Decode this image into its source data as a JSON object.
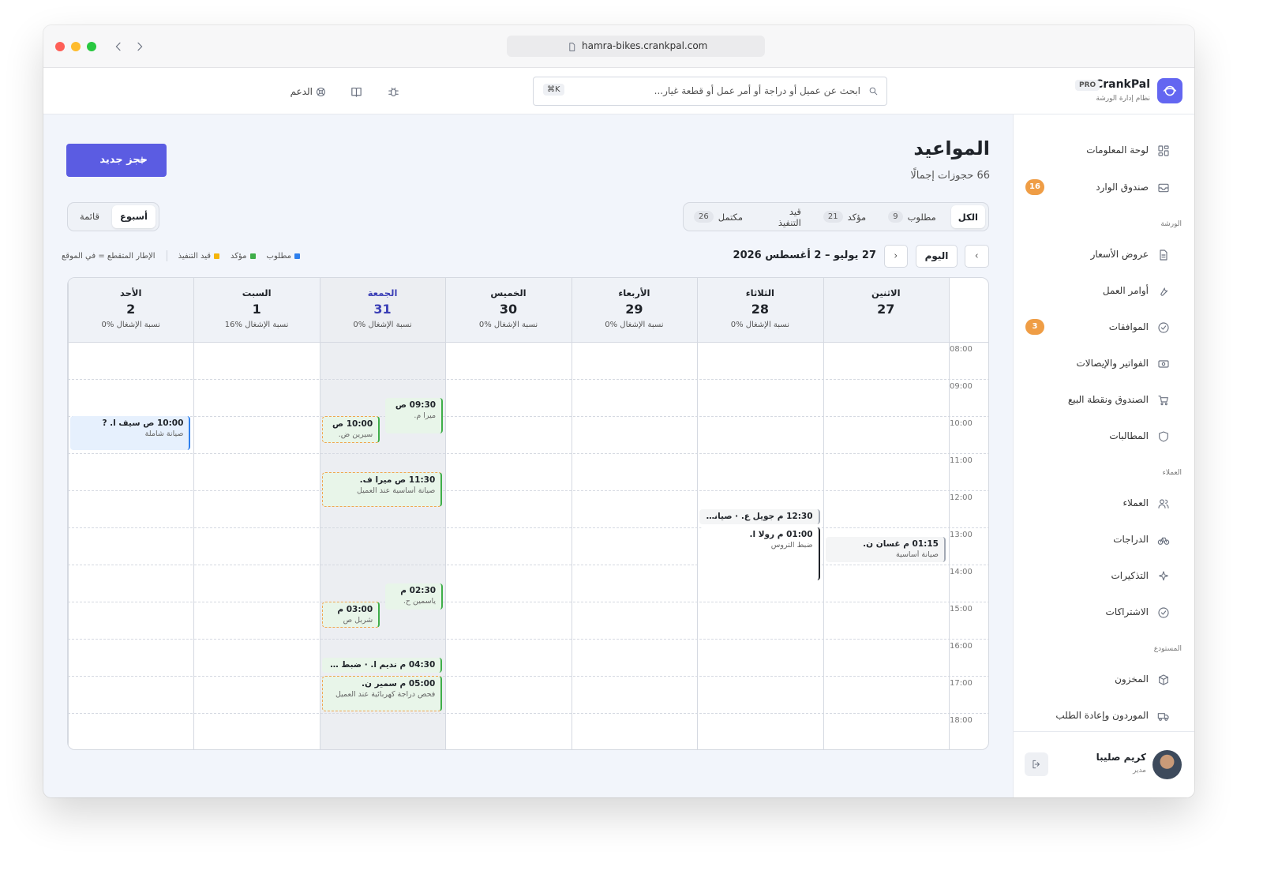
{
  "browser": {
    "url": "hamra-bikes.crankpal.com"
  },
  "brand": {
    "name": "CrankPal",
    "badge": "PRO",
    "tagline": "نظام إدارة الورشة"
  },
  "topbar": {
    "search_placeholder": "ابحث عن عميل أو دراجة أو أمر عمل أو قطعة غيار...",
    "shortcut": "⌘K",
    "support": "الدعم"
  },
  "sidebar": {
    "main": [
      {
        "label": "لوحة المعلومات"
      },
      {
        "label": "صندوق الوارد",
        "badge": 16
      }
    ],
    "groups": [
      {
        "title": "الورشة",
        "items": [
          {
            "label": "عروض الأسعار"
          },
          {
            "label": "أوامر العمل"
          },
          {
            "label": "الموافقات",
            "badge": 3
          },
          {
            "label": "الفواتير والإيصالات"
          },
          {
            "label": "الصندوق ونقطة البيع"
          },
          {
            "label": "المطالبات"
          }
        ]
      },
      {
        "title": "العملاء",
        "items": [
          {
            "label": "العملاء"
          },
          {
            "label": "الدراجات"
          },
          {
            "label": "التذكيرات"
          },
          {
            "label": "الاشتراكات"
          }
        ]
      },
      {
        "title": "المستودع",
        "items": [
          {
            "label": "المخزون"
          },
          {
            "label": "الموردون وإعادة الطلب"
          }
        ]
      }
    ],
    "user": {
      "name": "كريم صليبا",
      "role": "مدير"
    }
  },
  "page": {
    "title": "المواعيد",
    "subtitle": "66 حجوزات إجمالًا",
    "new_button": "حجز جديد"
  },
  "filters": {
    "active": 0,
    "tabs": [
      {
        "label": "الكل"
      },
      {
        "label": "مطلوب",
        "count": 9
      },
      {
        "label": "مؤكد",
        "count": 21
      },
      {
        "label": "قيد التنفيذ"
      },
      {
        "label": "مكتمل",
        "count": 26
      }
    ]
  },
  "views": {
    "active": 0,
    "options": [
      "أسبوع",
      "قائمة"
    ]
  },
  "nav": {
    "today": "اليوم",
    "range": "27 يوليو – 2 أغسطس 2026"
  },
  "legend": {
    "items": [
      {
        "label": "مطلوب",
        "color": "#2f80ed"
      },
      {
        "label": "مؤكد",
        "color": "#3fae49"
      },
      {
        "label": "قيد التنفيذ",
        "color": "#f5b50a"
      }
    ],
    "note": "الإطار المتقطع = في الموقع"
  },
  "calendar": {
    "today": 4,
    "hours": [
      "08:00",
      "09:00",
      "10:00",
      "11:00",
      "12:00",
      "13:00",
      "14:00",
      "15:00",
      "16:00",
      "17:00",
      "18:00"
    ],
    "days": [
      {
        "name": "الاثنين",
        "date": 27,
        "events": [
          {
            "time": "01:15 م",
            "name": "غسان ن.",
            "service": "صيانة أساسية",
            "color": "#a3a9b4",
            "onsite": false
          }
        ]
      },
      {
        "name": "الثلاثاء",
        "date": 28,
        "occupancy": "نسبة الإشغال %0",
        "events": [
          {
            "time": "12:30 م",
            "name": "جويل ع.",
            "service": "صيانة أساسية",
            "color": "#a3a9b4",
            "onsite": false
          },
          {
            "time": "01:00 م",
            "name": "رولا ا.",
            "service": "ضبط التروس",
            "color": "#1f2329",
            "onsite": false
          }
        ]
      },
      {
        "name": "الأربعاء",
        "date": 29,
        "occupancy": "نسبة الإشغال %0",
        "events": []
      },
      {
        "name": "الخميس",
        "date": 30,
        "occupancy": "نسبة الإشغال %0",
        "events": []
      },
      {
        "name": "الجمعة",
        "date": 31,
        "occupancy": "نسبة الإشغال %0",
        "events": [
          {
            "time": "09:30 ص",
            "name": "ميرا م.",
            "color": "#3fae49",
            "onsite": false
          },
          {
            "time": "10:00 ص",
            "name": "سيرين ض.",
            "color": "#3fae49",
            "onsite": true
          },
          {
            "time": "11:30 ص",
            "name": "ميرا ف.",
            "service": "صيانة أساسية عند العميل",
            "color": "#3fae49",
            "onsite": true
          },
          {
            "time": "02:30 م",
            "name": "ياسمين ح.",
            "color": "#3fae49",
            "onsite": false
          },
          {
            "time": "03:00 م",
            "name": "شربل ص",
            "color": "#3fae49",
            "onsite": true
          },
          {
            "time": "04:30 م",
            "name": "نديم ا.",
            "service": "ضبط التروس",
            "color": "#3fae49",
            "onsite": false
          },
          {
            "time": "05:00 م",
            "name": "سمير ن.",
            "service": "فحص دراجة كهربائية عند العميل",
            "color": "#3fae49",
            "onsite": true
          }
        ]
      },
      {
        "name": "السبت",
        "date": 1,
        "occupancy": "نسبة الإشغال %16",
        "events": []
      },
      {
        "name": "الأحد",
        "date": 2,
        "occupancy": "نسبة الإشغال %0",
        "events": [
          {
            "time": "10:00 ص",
            "name": "سيف ا. ?",
            "service": "صيانة شاملة",
            "color": "#2f80ed",
            "onsite": false
          }
        ]
      }
    ]
  }
}
